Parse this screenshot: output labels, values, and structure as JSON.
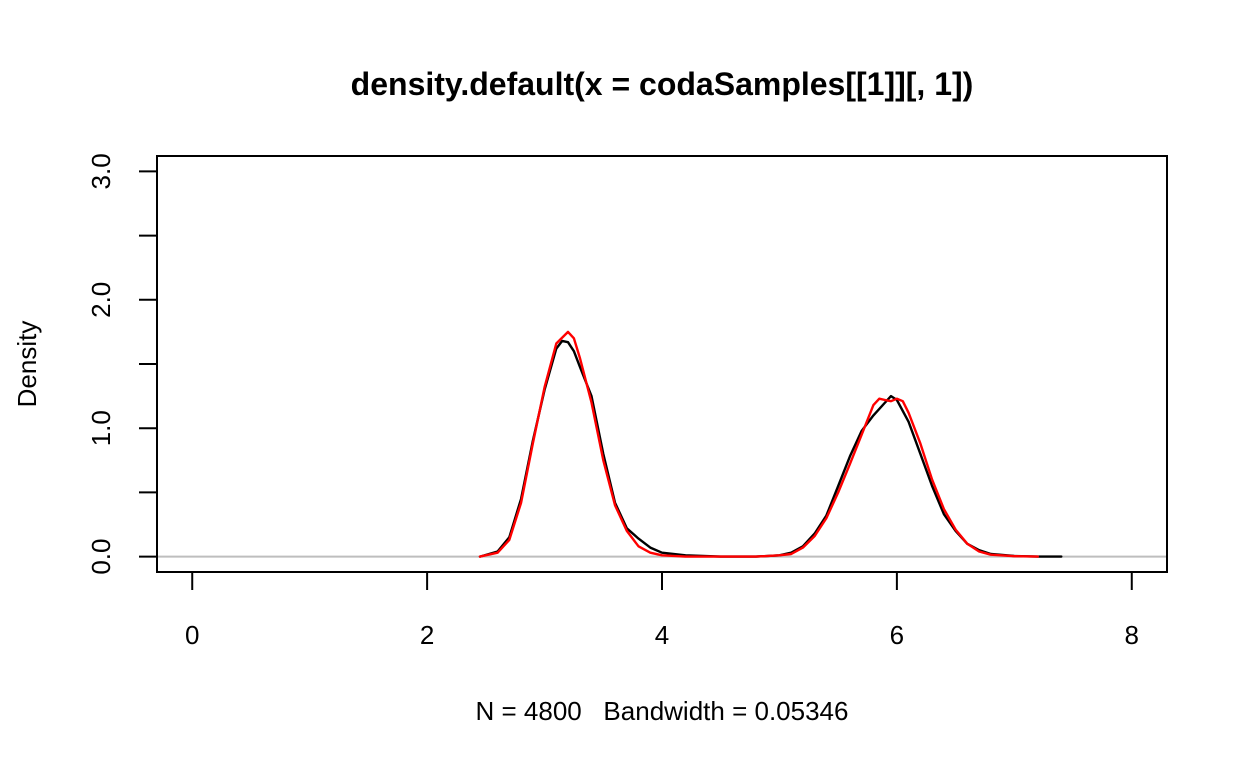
{
  "chart_data": {
    "type": "line",
    "title": "density.default(x = codaSamples[[1]][, 1])",
    "xlabel": "N = 4800   Bandwidth = 0.05346",
    "ylabel": "Density",
    "xlim": [
      -0.3,
      8.3
    ],
    "ylim": [
      -0.12,
      3.12
    ],
    "x_ticks": [
      0,
      2,
      4,
      6,
      8
    ],
    "x_tick_labels": [
      "0",
      "2",
      "4",
      "6",
      "8"
    ],
    "y_ticks": [
      0,
      0.5,
      1,
      1.5,
      2,
      2.5,
      3
    ],
    "y_tick_labels": [
      "0.0",
      "",
      "1.0",
      "",
      "2.0",
      "",
      "3.0"
    ],
    "grid": false,
    "baseline": {
      "y": 0,
      "color": "#bebebe"
    },
    "series": [
      {
        "color": "#000000",
        "points": [
          [
            2.45,
            0
          ],
          [
            2.6,
            0.04
          ],
          [
            2.7,
            0.15
          ],
          [
            2.8,
            0.45
          ],
          [
            2.9,
            0.9
          ],
          [
            3.0,
            1.3
          ],
          [
            3.1,
            1.62
          ],
          [
            3.15,
            1.68
          ],
          [
            3.2,
            1.67
          ],
          [
            3.25,
            1.6
          ],
          [
            3.3,
            1.48
          ],
          [
            3.4,
            1.25
          ],
          [
            3.5,
            0.8
          ],
          [
            3.6,
            0.42
          ],
          [
            3.7,
            0.22
          ],
          [
            3.8,
            0.14
          ],
          [
            3.9,
            0.07
          ],
          [
            4.0,
            0.03
          ],
          [
            4.2,
            0.01
          ],
          [
            4.5,
            0.0
          ],
          [
            4.8,
            0.0
          ],
          [
            5.0,
            0.01
          ],
          [
            5.1,
            0.03
          ],
          [
            5.2,
            0.08
          ],
          [
            5.3,
            0.18
          ],
          [
            5.4,
            0.32
          ],
          [
            5.5,
            0.55
          ],
          [
            5.6,
            0.78
          ],
          [
            5.7,
            0.98
          ],
          [
            5.8,
            1.1
          ],
          [
            5.9,
            1.2
          ],
          [
            5.95,
            1.25
          ],
          [
            6.0,
            1.22
          ],
          [
            6.1,
            1.05
          ],
          [
            6.2,
            0.8
          ],
          [
            6.3,
            0.55
          ],
          [
            6.4,
            0.33
          ],
          [
            6.5,
            0.2
          ],
          [
            6.6,
            0.1
          ],
          [
            6.7,
            0.05
          ],
          [
            6.8,
            0.02
          ],
          [
            7.0,
            0.005
          ],
          [
            7.2,
            0.0
          ],
          [
            7.4,
            0.0
          ]
        ]
      },
      {
        "color": "#ff0000",
        "points": [
          [
            2.45,
            0
          ],
          [
            2.6,
            0.03
          ],
          [
            2.7,
            0.13
          ],
          [
            2.8,
            0.42
          ],
          [
            2.9,
            0.88
          ],
          [
            3.0,
            1.32
          ],
          [
            3.1,
            1.66
          ],
          [
            3.2,
            1.75
          ],
          [
            3.25,
            1.7
          ],
          [
            3.3,
            1.55
          ],
          [
            3.4,
            1.2
          ],
          [
            3.5,
            0.75
          ],
          [
            3.6,
            0.4
          ],
          [
            3.7,
            0.2
          ],
          [
            3.8,
            0.08
          ],
          [
            3.9,
            0.03
          ],
          [
            4.0,
            0.01
          ],
          [
            4.2,
            0.0
          ],
          [
            4.8,
            0.0
          ],
          [
            5.0,
            0.01
          ],
          [
            5.1,
            0.02
          ],
          [
            5.2,
            0.07
          ],
          [
            5.3,
            0.16
          ],
          [
            5.4,
            0.3
          ],
          [
            5.5,
            0.5
          ],
          [
            5.6,
            0.72
          ],
          [
            5.7,
            0.95
          ],
          [
            5.8,
            1.18
          ],
          [
            5.85,
            1.23
          ],
          [
            5.9,
            1.22
          ],
          [
            5.95,
            1.21
          ],
          [
            6.0,
            1.23
          ],
          [
            6.05,
            1.21
          ],
          [
            6.1,
            1.12
          ],
          [
            6.2,
            0.88
          ],
          [
            6.3,
            0.6
          ],
          [
            6.4,
            0.37
          ],
          [
            6.5,
            0.21
          ],
          [
            6.6,
            0.1
          ],
          [
            6.7,
            0.04
          ],
          [
            6.8,
            0.015
          ],
          [
            7.0,
            0.003
          ],
          [
            7.2,
            0.0
          ]
        ]
      }
    ]
  }
}
